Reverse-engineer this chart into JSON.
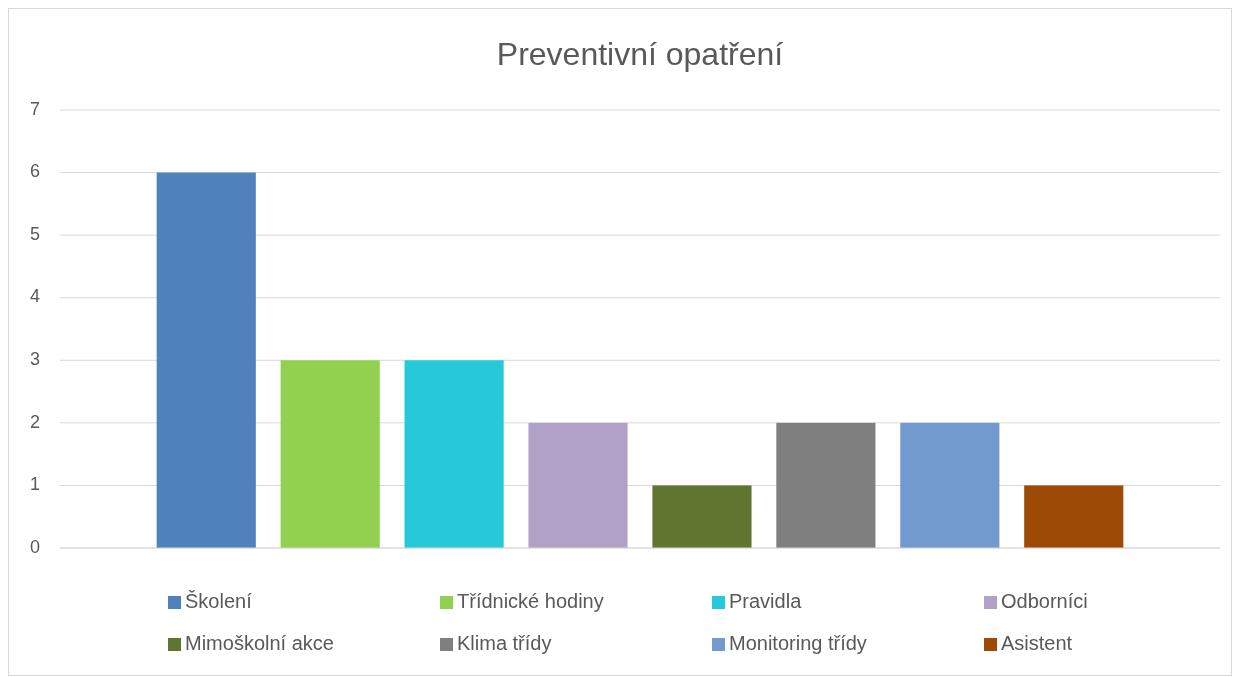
{
  "chart_data": {
    "type": "bar",
    "title": "Preventivní opatření",
    "categories": [
      null
    ],
    "series": [
      {
        "name": "Školení",
        "color": "#4f81bd",
        "values": [
          6
        ]
      },
      {
        "name": "Třídnické hodiny",
        "color": "#92d050",
        "values": [
          3
        ]
      },
      {
        "name": "Pravidla",
        "color": "#26c9da",
        "values": [
          3
        ]
      },
      {
        "name": "Odborníci",
        "color": "#b2a1c7",
        "values": [
          2
        ]
      },
      {
        "name": "Mimoškolní akce",
        "color": "#5f7530",
        "values": [
          1
        ]
      },
      {
        "name": "Klima třídy",
        "color": "#7f7f7f",
        "values": [
          2
        ]
      },
      {
        "name": "Monitoring třídy",
        "color": "#729acf",
        "values": [
          2
        ]
      },
      {
        "name": "Asistent",
        "color": "#9c4a06",
        "values": [
          1
        ]
      }
    ],
    "ylim": [
      0,
      7
    ],
    "yticks": [
      0,
      1,
      2,
      3,
      4,
      5,
      6,
      7
    ],
    "grid": "y",
    "legend": "bottom"
  }
}
